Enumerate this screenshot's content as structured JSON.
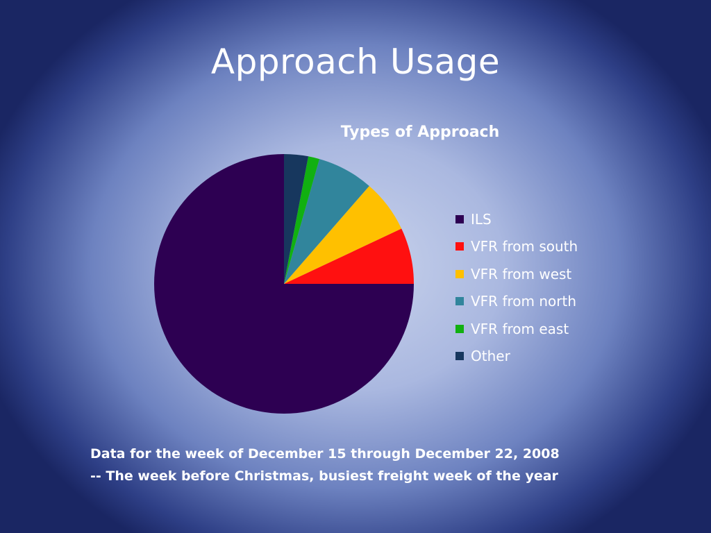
{
  "slide": {
    "title": "Approach Usage",
    "footnote_lines": [
      "Data for the week of December 15 through December 22, 2008",
      "-- The week before Christmas, busiest freight week of the year"
    ]
  },
  "chart_data": {
    "type": "pie",
    "title": "Types of Approach",
    "legend_position": "right",
    "categories": [
      "ILS",
      "VFR from south",
      "VFR from west",
      "VFR from north",
      "VFR from east",
      "Other"
    ],
    "values": [
      75,
      7,
      6.6,
      7,
      1.4,
      3
    ],
    "colors": [
      "#2d0052",
      "#ff1010",
      "#ffc000",
      "#31859c",
      "#11b011",
      "#17375e"
    ]
  }
}
